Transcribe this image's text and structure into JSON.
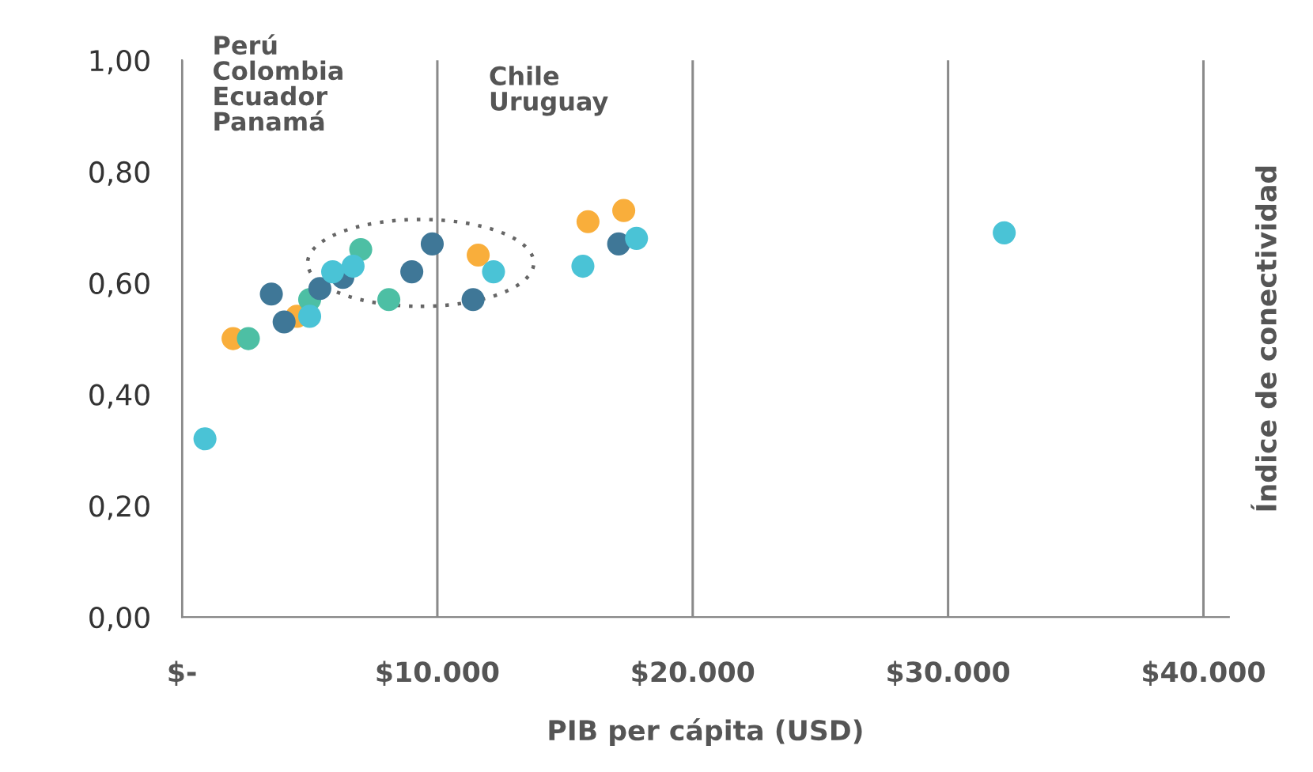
{
  "chart_data": {
    "type": "scatter",
    "xlabel": "PIB per cápita (USD)",
    "ylabel": "Índice de conectividad",
    "xlim": [
      0,
      41000
    ],
    "ylim": [
      0,
      1
    ],
    "xticks": [
      {
        "value": 0,
        "label": "$-"
      },
      {
        "value": 10000,
        "label": "$10.000"
      },
      {
        "value": 20000,
        "label": "$20.000"
      },
      {
        "value": 30000,
        "label": "$30.000"
      },
      {
        "value": 40000,
        "label": "$40.000"
      }
    ],
    "yticks": [
      {
        "value": 0,
        "label": "0,00"
      },
      {
        "value": 0.2,
        "label": "0,20"
      },
      {
        "value": 0.4,
        "label": "0,40"
      },
      {
        "value": 0.6,
        "label": "0,60"
      },
      {
        "value": 0.8,
        "label": "0,80"
      },
      {
        "value": 1,
        "label": "1,00"
      }
    ],
    "grid": "x",
    "marker": "circle",
    "annotations": [
      "Perú\nColombia\nEcuador\nPanamá",
      "Chile\nUruguay"
    ],
    "series": [
      {
        "color": "#f9ae3b",
        "x": [
          2000,
          4500,
          11600,
          15900,
          17300
        ],
        "values": [
          0.5,
          0.54,
          0.65,
          0.71,
          0.73
        ]
      },
      {
        "color": "#4dbfa4",
        "x": [
          2600,
          5000,
          7000,
          8100
        ],
        "values": [
          0.5,
          0.57,
          0.66,
          0.57
        ]
      },
      {
        "color": "#3f7797",
        "x": [
          3500,
          4000,
          5400,
          6300,
          9000,
          9800,
          11400,
          17100
        ],
        "values": [
          0.58,
          0.53,
          0.59,
          0.61,
          0.62,
          0.67,
          0.57,
          0.67
        ]
      },
      {
        "color": "#4ac3d6",
        "x": [
          900,
          5000,
          5900,
          6700,
          12200,
          15700,
          17800,
          32200
        ],
        "values": [
          0.32,
          0.54,
          0.62,
          0.63,
          0.62,
          0.63,
          0.68,
          0.69
        ]
      }
    ]
  }
}
